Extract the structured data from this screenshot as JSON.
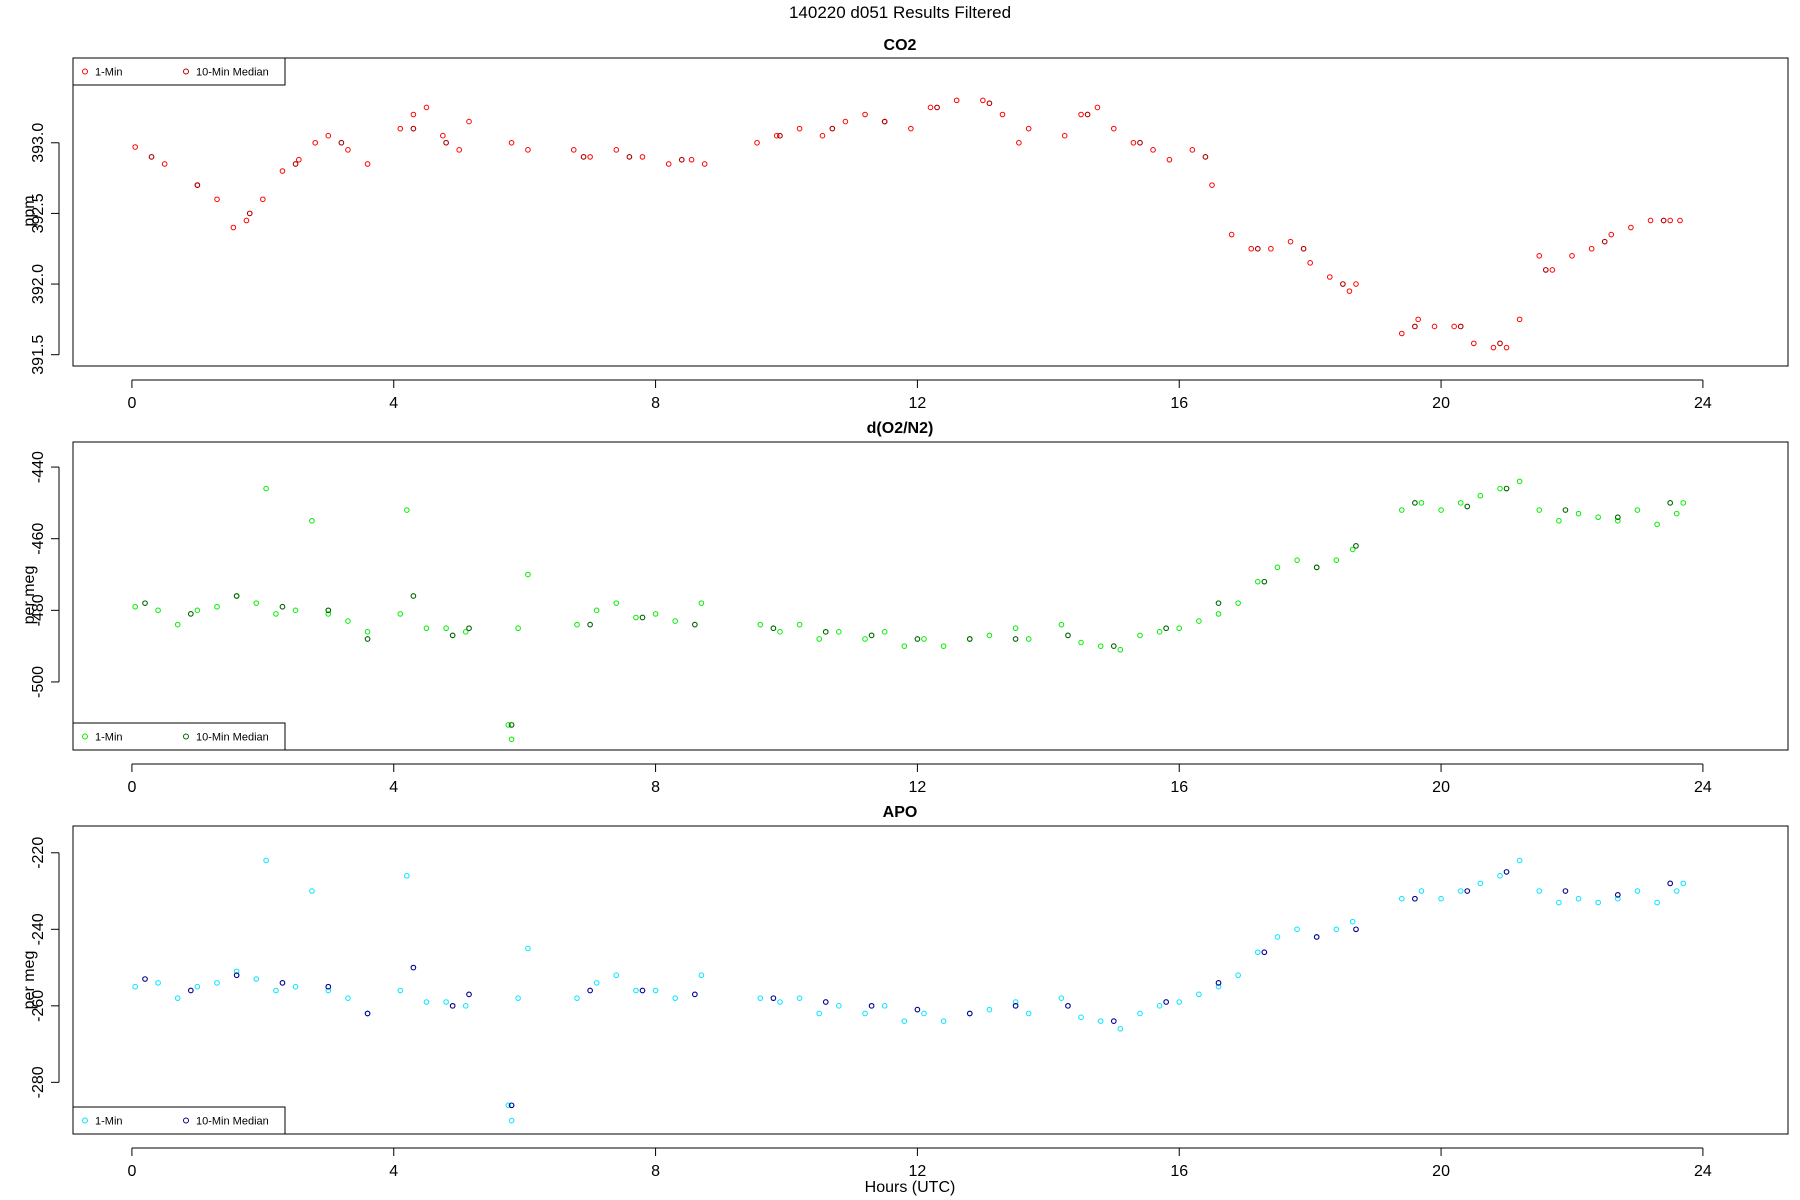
{
  "figure": {
    "main_title": "140220   d051   Results Filtered",
    "x_axis_label": "Hours (UTC)"
  },
  "colors": {
    "co2_1min": "#ff0000",
    "co2_median": "#b00000",
    "o2_1min": "#00ee00",
    "o2_median": "#006400",
    "apo_1min": "#00e5ff",
    "apo_median": "#00008b"
  },
  "chart_data": [
    {
      "type": "scatter",
      "title": "CO2",
      "ylabel": "ppm",
      "xlim": [
        -0.9,
        25.3
      ],
      "ylim": [
        391.42,
        393.6
      ],
      "x_ticks": [
        0,
        4,
        8,
        12,
        16,
        20,
        24
      ],
      "y_ticks": [
        391.5,
        392.0,
        392.5,
        393.0
      ],
      "y_tick_labels": [
        "391.5",
        "392.0",
        "392.5",
        "393.0"
      ],
      "legend": {
        "position": "top-left",
        "entries": [
          "1-Min",
          "10-Min Median"
        ]
      },
      "series": [
        {
          "name": "1-Min",
          "style": "small-open-circle",
          "color_key": "co2_1min",
          "x": [
            0.05,
            0.5,
            1.0,
            1.3,
            1.55,
            1.75,
            2.0,
            2.3,
            2.55,
            2.8,
            3.0,
            3.3,
            3.6,
            4.1,
            4.3,
            4.5,
            4.75,
            5.0,
            5.15,
            5.8,
            6.05,
            6.75,
            7.0,
            7.4,
            7.8,
            8.2,
            8.55,
            8.75,
            9.55,
            9.85,
            10.2,
            10.55,
            10.9,
            11.2,
            11.5,
            11.9,
            12.2,
            12.6,
            13.0,
            13.3,
            13.55,
            13.7,
            14.25,
            14.5,
            14.75,
            15.0,
            15.3,
            15.6,
            15.85,
            16.2,
            16.5,
            16.8,
            17.1,
            17.4,
            17.7,
            18.0,
            18.3,
            18.6,
            18.7,
            19.4,
            19.65,
            19.9,
            20.2,
            20.5,
            20.8,
            21.0,
            21.2,
            21.5,
            21.7,
            22.0,
            22.3,
            22.6,
            22.9,
            23.2,
            23.5,
            23.65
          ],
          "y": [
            392.97,
            392.85,
            392.7,
            392.6,
            392.4,
            392.45,
            392.6,
            392.8,
            392.88,
            393.0,
            393.05,
            392.95,
            392.85,
            393.1,
            393.2,
            393.25,
            393.05,
            392.95,
            393.15,
            393.0,
            392.95,
            392.95,
            392.9,
            392.95,
            392.9,
            392.85,
            392.88,
            392.85,
            393.0,
            393.05,
            393.1,
            393.05,
            393.15,
            393.2,
            393.15,
            393.1,
            393.25,
            393.3,
            393.3,
            393.2,
            393.0,
            393.1,
            393.05,
            393.2,
            393.25,
            393.1,
            393.0,
            392.95,
            392.88,
            392.95,
            392.7,
            392.35,
            392.25,
            392.25,
            392.3,
            392.15,
            392.05,
            391.95,
            392.0,
            391.65,
            391.75,
            391.7,
            391.7,
            391.58,
            391.55,
            391.55,
            391.75,
            392.2,
            392.1,
            392.2,
            392.25,
            392.35,
            392.4,
            392.45,
            392.45,
            392.45
          ]
        },
        {
          "name": "10-Min Median",
          "style": "small-open-circle",
          "color_key": "co2_median",
          "x": [
            0.3,
            1.0,
            1.8,
            2.5,
            3.2,
            4.3,
            4.8,
            6.9,
            7.6,
            8.4,
            9.9,
            10.7,
            11.5,
            12.3,
            13.1,
            14.6,
            15.4,
            16.4,
            17.2,
            17.9,
            18.5,
            19.6,
            20.3,
            20.9,
            21.6,
            22.5,
            23.4
          ],
          "y": [
            392.9,
            392.7,
            392.5,
            392.85,
            393.0,
            393.1,
            393.0,
            392.9,
            392.9,
            392.88,
            393.05,
            393.1,
            393.15,
            393.25,
            393.28,
            393.2,
            393.0,
            392.9,
            392.25,
            392.25,
            392.0,
            391.7,
            391.7,
            391.58,
            392.1,
            392.3,
            392.45
          ]
        }
      ]
    },
    {
      "type": "scatter",
      "title": "d(O2/N2)",
      "ylabel": "per meg",
      "xlim": [
        -0.9,
        25.3
      ],
      "ylim": [
        -519,
        -433
      ],
      "x_ticks": [
        0,
        4,
        8,
        12,
        16,
        20,
        24
      ],
      "y_ticks": [
        -500,
        -480,
        -460,
        -440
      ],
      "y_tick_labels": [
        "-500",
        "-480",
        "-460",
        "-440"
      ],
      "legend": {
        "position": "bottom-left",
        "entries": [
          "1-Min",
          "10-Min Median"
        ]
      },
      "series": [
        {
          "name": "1-Min",
          "style": "small-open-circle",
          "color_key": "o2_1min",
          "x": [
            0.05,
            0.4,
            0.7,
            1.0,
            1.3,
            1.6,
            1.9,
            2.05,
            2.2,
            2.5,
            2.75,
            3.0,
            3.3,
            3.6,
            4.1,
            4.2,
            4.5,
            4.8,
            5.1,
            5.75,
            5.8,
            5.9,
            6.05,
            6.8,
            7.1,
            7.4,
            7.7,
            8.0,
            8.3,
            8.7,
            9.6,
            9.9,
            10.2,
            10.5,
            10.8,
            11.2,
            11.5,
            11.8,
            12.1,
            12.4,
            12.8,
            13.1,
            13.5,
            13.7,
            14.2,
            14.5,
            14.8,
            15.1,
            15.4,
            15.7,
            16.0,
            16.3,
            16.6,
            16.9,
            17.2,
            17.5,
            17.8,
            18.1,
            18.4,
            18.65,
            19.4,
            19.7,
            20.0,
            20.3,
            20.6,
            20.9,
            21.2,
            21.5,
            21.8,
            22.1,
            22.4,
            22.7,
            23.0,
            23.3,
            23.6,
            23.7
          ],
          "y": [
            -479,
            -480,
            -484,
            -480,
            -479,
            -476,
            -478,
            -446,
            -481,
            -480,
            -455,
            -481,
            -483,
            -486,
            -481,
            -452,
            -485,
            -485,
            -486,
            -512,
            -516,
            -485,
            -470,
            -484,
            -480,
            -478,
            -482,
            -481,
            -483,
            -478,
            -484,
            -486,
            -484,
            -488,
            -486,
            -488,
            -486,
            -490,
            -488,
            -490,
            -488,
            -487,
            -485,
            -488,
            -484,
            -489,
            -490,
            -491,
            -487,
            -486,
            -485,
            -483,
            -481,
            -478,
            -472,
            -468,
            -466,
            -468,
            -466,
            -463,
            -452,
            -450,
            -452,
            -450,
            -448,
            -446,
            -444,
            -452,
            -455,
            -453,
            -454,
            -455,
            -452,
            -456,
            -453,
            -450
          ]
        },
        {
          "name": "10-Min Median",
          "style": "small-open-circle",
          "color_key": "o2_median",
          "x": [
            0.2,
            0.9,
            1.6,
            2.3,
            3.0,
            3.6,
            4.3,
            4.9,
            5.15,
            5.8,
            7.0,
            7.8,
            8.6,
            9.8,
            10.6,
            11.3,
            12.0,
            12.8,
            13.5,
            14.3,
            15.0,
            15.8,
            16.6,
            17.3,
            18.1,
            18.7,
            19.6,
            20.4,
            21.0,
            21.9,
            22.7,
            23.5
          ],
          "y": [
            -478,
            -481,
            -476,
            -479,
            -480,
            -488,
            -476,
            -487,
            -485,
            -512,
            -484,
            -482,
            -484,
            -485,
            -486,
            -487,
            -488,
            -488,
            -488,
            -487,
            -490,
            -485,
            -478,
            -472,
            -468,
            -462,
            -450,
            -451,
            -446,
            -452,
            -454,
            -450
          ]
        }
      ]
    },
    {
      "type": "scatter",
      "title": "APO",
      "ylabel": "per meg",
      "xlim": [
        -0.9,
        25.3
      ],
      "ylim": [
        -293.5,
        -213
      ],
      "x_ticks": [
        0,
        4,
        8,
        12,
        16,
        20,
        24
      ],
      "y_ticks": [
        -280,
        -260,
        -240,
        -220
      ],
      "y_tick_labels": [
        "-280",
        "-260",
        "-240",
        "-220"
      ],
      "legend": {
        "position": "bottom-left",
        "entries": [
          "1-Min",
          "10-Min Median"
        ]
      },
      "series": [
        {
          "name": "1-Min",
          "style": "small-open-circle",
          "color_key": "apo_1min",
          "x": [
            0.05,
            0.4,
            0.7,
            1.0,
            1.3,
            1.6,
            1.9,
            2.05,
            2.2,
            2.5,
            2.75,
            3.0,
            3.3,
            3.6,
            4.1,
            4.2,
            4.5,
            4.8,
            5.1,
            5.75,
            5.8,
            5.9,
            6.05,
            6.8,
            7.1,
            7.4,
            7.7,
            8.0,
            8.3,
            8.7,
            9.6,
            9.9,
            10.2,
            10.5,
            10.8,
            11.2,
            11.5,
            11.8,
            12.1,
            12.4,
            12.8,
            13.1,
            13.5,
            13.7,
            14.2,
            14.5,
            14.8,
            15.1,
            15.4,
            15.7,
            16.0,
            16.3,
            16.6,
            16.9,
            17.2,
            17.5,
            17.8,
            18.1,
            18.4,
            18.65,
            19.4,
            19.7,
            20.0,
            20.3,
            20.6,
            20.9,
            21.2,
            21.5,
            21.8,
            22.1,
            22.4,
            22.7,
            23.0,
            23.3,
            23.6,
            23.7
          ],
          "y": [
            -255,
            -254,
            -258,
            -255,
            -254,
            -251,
            -253,
            -222,
            -256,
            -255,
            -230,
            -256,
            -258,
            -262,
            -256,
            -226,
            -259,
            -259,
            -260,
            -286,
            -290,
            -258,
            -245,
            -258,
            -254,
            -252,
            -256,
            -256,
            -258,
            -252,
            -258,
            -259,
            -258,
            -262,
            -260,
            -262,
            -260,
            -264,
            -262,
            -264,
            -262,
            -261,
            -259,
            -262,
            -258,
            -263,
            -264,
            -266,
            -262,
            -260,
            -259,
            -257,
            -255,
            -252,
            -246,
            -242,
            -240,
            -242,
            -240,
            -238,
            -232,
            -230,
            -232,
            -230,
            -228,
            -226,
            -222,
            -230,
            -233,
            -232,
            -233,
            -232,
            -230,
            -233,
            -230,
            -228
          ]
        },
        {
          "name": "10-Min Median",
          "style": "small-open-circle",
          "color_key": "apo_median",
          "x": [
            0.2,
            0.9,
            1.6,
            2.3,
            3.0,
            3.6,
            4.3,
            4.9,
            5.15,
            5.8,
            7.0,
            7.8,
            8.6,
            9.8,
            10.6,
            11.3,
            12.0,
            12.8,
            13.5,
            14.3,
            15.0,
            15.8,
            16.6,
            17.3,
            18.1,
            18.7,
            19.6,
            20.4,
            21.0,
            21.9,
            22.7,
            23.5
          ],
          "y": [
            -253,
            -256,
            -252,
            -254,
            -255,
            -262,
            -250,
            -260,
            -257,
            -286,
            -256,
            -256,
            -257,
            -258,
            -259,
            -260,
            -261,
            -262,
            -260,
            -260,
            -264,
            -259,
            -254,
            -246,
            -242,
            -240,
            -232,
            -230,
            -225,
            -230,
            -231,
            -228
          ]
        }
      ]
    }
  ]
}
